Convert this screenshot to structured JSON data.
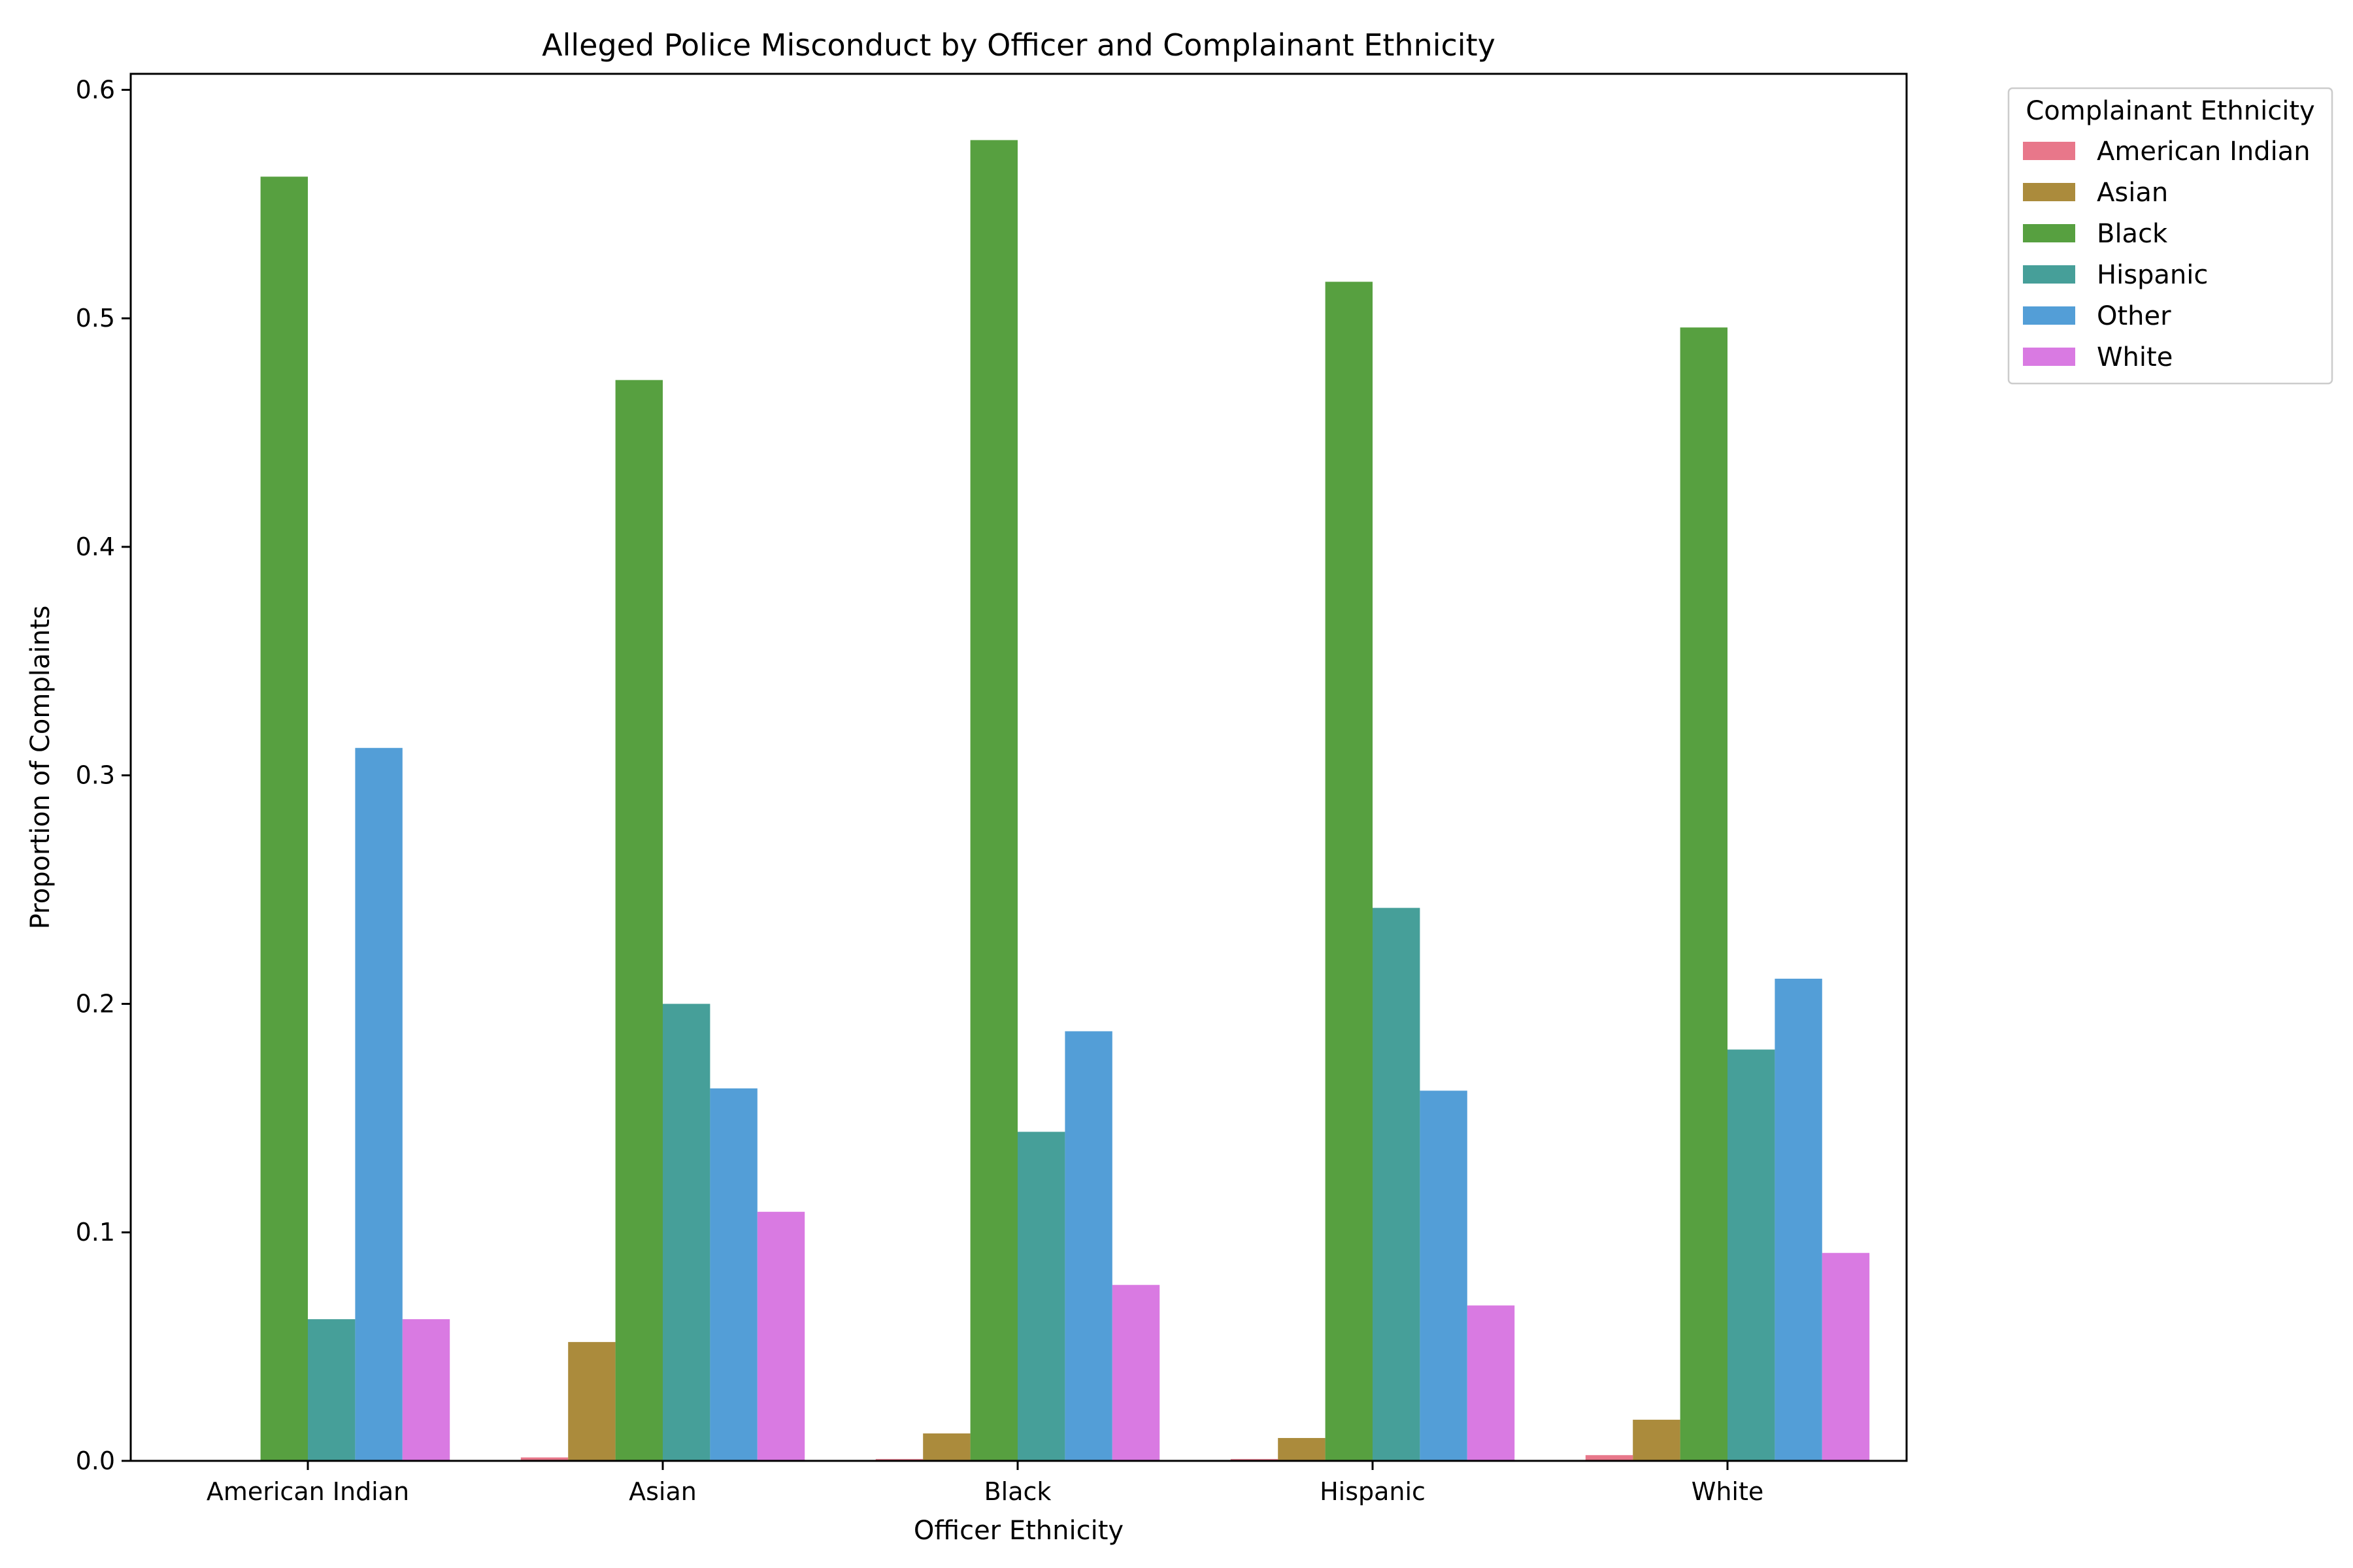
{
  "chart_data": {
    "type": "bar",
    "title": "Alleged Police Misconduct by Officer and Complainant Ethnicity",
    "xlabel": "Officer Ethnicity",
    "ylabel": "Proportion of Complaints",
    "ylim": [
      0,
      0.607
    ],
    "yticks": [
      "0.0",
      "0.1",
      "0.2",
      "0.3",
      "0.4",
      "0.5",
      "0.6"
    ],
    "ytick_values": [
      0,
      0.1,
      0.2,
      0.3,
      0.4,
      0.5,
      0.6
    ],
    "categories": [
      "American Indian",
      "Asian",
      "Black",
      "Hispanic",
      "White"
    ],
    "legend": {
      "title": "Complainant Ethnicity",
      "placement": "outside-top-right"
    },
    "grid": false,
    "series": [
      {
        "name": "American Indian",
        "color": "#e8778a",
        "values": [
          0.0,
          0.0015,
          0.0008,
          0.0008,
          0.0025
        ]
      },
      {
        "name": "Asian",
        "color": "#ab8b3c",
        "values": [
          0.0,
          0.052,
          0.012,
          0.01,
          0.018
        ]
      },
      {
        "name": "Black",
        "color": "#57a040",
        "values": [
          0.562,
          0.473,
          0.578,
          0.516,
          0.496
        ]
      },
      {
        "name": "Hispanic",
        "color": "#469f99",
        "values": [
          0.062,
          0.2,
          0.144,
          0.242,
          0.18
        ]
      },
      {
        "name": "Other",
        "color": "#539ed7",
        "values": [
          0.312,
          0.163,
          0.188,
          0.162,
          0.211
        ]
      },
      {
        "name": "White",
        "color": "#d97ae2",
        "values": [
          0.062,
          0.109,
          0.077,
          0.068,
          0.091
        ]
      }
    ]
  }
}
